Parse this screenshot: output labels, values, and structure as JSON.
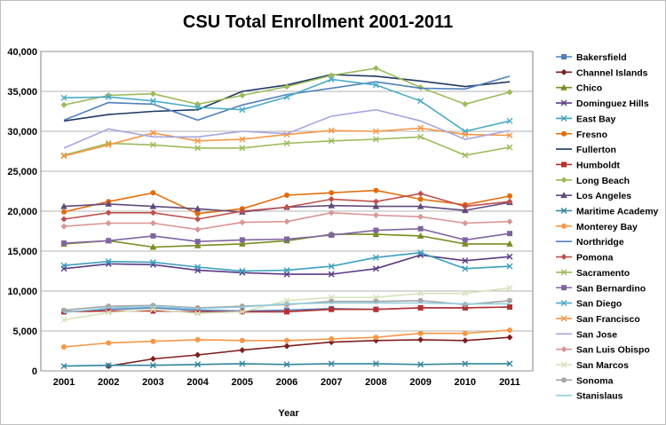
{
  "chart_data": {
    "type": "line",
    "title": "CSU Total Enrollment 2001-2011",
    "xlabel": "Year",
    "ylabel": "",
    "ylim": [
      0,
      40000
    ],
    "yticks": [
      0,
      5000,
      10000,
      15000,
      20000,
      25000,
      30000,
      35000,
      40000
    ],
    "ytick_labels": [
      "0",
      "5,000",
      "10,000",
      "15,000",
      "20,000",
      "25,000",
      "30,000",
      "35,000",
      "40,000"
    ],
    "x": [
      "2001",
      "2002",
      "2003",
      "2004",
      "2005",
      "2006",
      "2007",
      "2008",
      "2009",
      "2010",
      "2011"
    ],
    "grid": true,
    "legend_position": "right",
    "series": [
      {
        "name": "Bakersfield",
        "color": "#4F81BD",
        "marker": "square",
        "values": [
          7400,
          7700,
          7900,
          7600,
          7500,
          7600,
          7800,
          7700,
          7900,
          7900,
          8000
        ]
      },
      {
        "name": "Channel Islands",
        "color": "#7F1F1F",
        "marker": "diamond",
        "values": [
          null,
          600,
          1500,
          2000,
          2600,
          3100,
          3600,
          3800,
          3900,
          3800,
          4200
        ]
      },
      {
        "name": "Chico",
        "color": "#7A8C1E",
        "marker": "triangle",
        "values": [
          15900,
          16300,
          15500,
          15700,
          15900,
          16300,
          17100,
          17100,
          16900,
          15900,
          15900
        ]
      },
      {
        "name": "Dominguez Hills",
        "color": "#5B3A84",
        "marker": "x",
        "values": [
          12800,
          13400,
          13300,
          12600,
          12300,
          12100,
          12100,
          12800,
          14500,
          13800,
          14300
        ]
      },
      {
        "name": "East Bay",
        "color": "#3CA0BE",
        "marker": "x",
        "values": [
          13200,
          13700,
          13600,
          13000,
          12500,
          12600,
          13100,
          14200,
          14800,
          12800,
          13100
        ]
      },
      {
        "name": "Fresno",
        "color": "#E36C0A",
        "marker": "circle",
        "values": [
          19900,
          21200,
          22300,
          19700,
          20300,
          22000,
          22300,
          22600,
          21500,
          20800,
          21900
        ]
      },
      {
        "name": "Fullerton",
        "color": "#1F3864",
        "marker": "none",
        "values": [
          31300,
          32100,
          32500,
          32700,
          35000,
          35800,
          37100,
          36900,
          36300,
          35600,
          36200
        ]
      },
      {
        "name": "Humboldt",
        "color": "#B83030",
        "marker": "square",
        "values": [
          7400,
          7500,
          7500,
          7400,
          7400,
          7400,
          7700,
          7700,
          7900,
          7900,
          8000
        ]
      },
      {
        "name": "Long Beach",
        "color": "#9BBB59",
        "marker": "diamond",
        "values": [
          33300,
          34500,
          34700,
          33400,
          34500,
          35600,
          37000,
          37900,
          35500,
          33400,
          34900
        ]
      },
      {
        "name": "Los Angeles",
        "color": "#604A7B",
        "marker": "triangle",
        "values": [
          20600,
          20900,
          20600,
          20300,
          19900,
          20500,
          20700,
          20600,
          20600,
          20100,
          21100
        ]
      },
      {
        "name": "Maritime Academy",
        "color": "#31859C",
        "marker": "x",
        "values": [
          600,
          700,
          700,
          800,
          900,
          800,
          900,
          900,
          800,
          900,
          900
        ]
      },
      {
        "name": "Monterey Bay",
        "color": "#F79646",
        "marker": "circle",
        "values": [
          3000,
          3500,
          3700,
          3900,
          3800,
          3800,
          4000,
          4200,
          4700,
          4700,
          5100
        ]
      },
      {
        "name": "Northridge",
        "color": "#4F81BD",
        "marker": "none",
        "values": [
          31400,
          33600,
          33400,
          31400,
          33300,
          34600,
          35400,
          36200,
          35400,
          35300,
          36900
        ]
      },
      {
        "name": "Pomona",
        "color": "#C0504D",
        "marker": "diamond",
        "values": [
          19000,
          19800,
          19800,
          19000,
          20000,
          20500,
          21500,
          21200,
          22200,
          20600,
          21200
        ]
      },
      {
        "name": "Sacramento",
        "color": "#9BBB59",
        "marker": "x",
        "values": [
          27000,
          28500,
          28300,
          27900,
          27900,
          28500,
          28800,
          29000,
          29300,
          27000,
          28000
        ]
      },
      {
        "name": "San Bernardino",
        "color": "#8064A2",
        "marker": "square",
        "values": [
          16000,
          16300,
          16900,
          16200,
          16400,
          16500,
          17000,
          17600,
          17800,
          16400,
          17200
        ]
      },
      {
        "name": "San Diego",
        "color": "#4BACC6",
        "marker": "x",
        "values": [
          34200,
          34300,
          33800,
          33000,
          32700,
          34300,
          36500,
          35800,
          33800,
          30000,
          31300
        ]
      },
      {
        "name": "San Francisco",
        "color": "#F79646",
        "marker": "x",
        "values": [
          26900,
          28300,
          29800,
          28800,
          29000,
          29600,
          30100,
          30000,
          30400,
          29600,
          29500
        ]
      },
      {
        "name": "San Jose",
        "color": "#A6A6E0",
        "marker": "none",
        "values": [
          27900,
          30300,
          29300,
          29300,
          30000,
          29700,
          31900,
          32700,
          31300,
          29000,
          30100
        ]
      },
      {
        "name": "San Luis Obispo",
        "color": "#D99694",
        "marker": "diamond",
        "values": [
          18100,
          18500,
          18500,
          17700,
          18600,
          18700,
          19800,
          19500,
          19300,
          18500,
          18700
        ]
      },
      {
        "name": "San Marcos",
        "color": "#D7E4BD",
        "marker": "x",
        "values": [
          6400,
          7300,
          7700,
          7200,
          7400,
          8800,
          9200,
          9200,
          9700,
          9700,
          10400
        ]
      },
      {
        "name": "Sonoma",
        "color": "#A5A5A5",
        "marker": "circle",
        "values": [
          7600,
          8100,
          8200,
          7900,
          8100,
          8300,
          8700,
          8700,
          8800,
          8300,
          8800
        ]
      },
      {
        "name": "Stanislaus",
        "color": "#92CDDC",
        "marker": "none",
        "values": [
          7300,
          7900,
          8100,
          7800,
          8000,
          8400,
          8500,
          8500,
          8500,
          8400,
          8400
        ]
      }
    ]
  }
}
